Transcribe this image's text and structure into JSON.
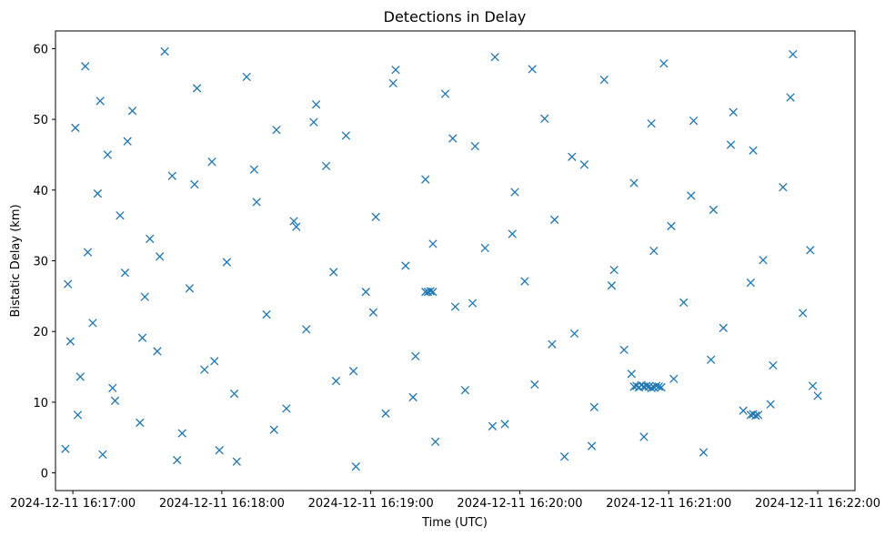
{
  "chart_data": {
    "type": "scatter",
    "title": "Detections in Delay",
    "xlabel": "Time (UTC)",
    "ylabel": "Bistatic Delay (km)",
    "x_ticks": [
      "2024-12-11 16:17:00",
      "2024-12-11 16:18:00",
      "2024-12-11 16:19:00",
      "2024-12-11 16:20:00",
      "2024-12-11 16:21:00",
      "2024-12-11 16:22:00"
    ],
    "y_ticks": [
      0,
      10,
      20,
      30,
      40,
      50,
      60
    ],
    "xlim": [
      "2024-12-11 16:16:53",
      "2024-12-11 16:22:15"
    ],
    "ylim": [
      -2.5,
      62.5
    ],
    "grid": false,
    "marker": "x",
    "color": "#1f77b4",
    "series": [
      {
        "x_time": [
          "16:16:57",
          "16:16:59",
          "16:17:01",
          "16:17:03",
          "16:17:05",
          "16:17:08",
          "16:17:10",
          "16:17:12",
          "16:17:14",
          "16:17:17",
          "16:17:19",
          "16:17:21",
          "16:17:24",
          "16:17:27",
          "16:17:29",
          "16:17:31",
          "16:17:34",
          "16:17:37",
          "16:17:40",
          "16:17:44",
          "16:17:47",
          "16:17:50",
          "16:17:53",
          "16:17:56",
          "16:17:59",
          "16:18:02",
          "16:18:06",
          "16:18:10",
          "16:18:14",
          "16:18:18",
          "16:18:22",
          "16:18:26",
          "16:18:30",
          "16:18:34",
          "16:18:38",
          "16:18:42",
          "16:18:46",
          "16:18:50",
          "16:18:54",
          "16:18:58",
          "16:19:02",
          "16:19:06",
          "16:19:10",
          "16:19:14",
          "16:19:18",
          "16:19:22",
          "16:19:26",
          "16:19:30",
          "16:19:34",
          "16:19:38",
          "16:19:42",
          "16:19:46",
          "16:19:50",
          "16:19:54",
          "16:19:58",
          "16:20:02",
          "16:20:06",
          "16:20:10",
          "16:20:14",
          "16:20:18",
          "16:20:22",
          "16:20:26",
          "16:20:30",
          "16:20:34",
          "16:20:38",
          "16:20:42",
          "16:20:46",
          "16:20:50",
          "16:20:54",
          "16:20:58",
          "16:21:02",
          "16:21:06",
          "16:21:10",
          "16:21:14",
          "16:21:18",
          "16:21:22",
          "16:21:26",
          "16:21:30",
          "16:21:34",
          "16:21:38",
          "16:21:42",
          "16:21:46",
          "16:21:50",
          "16:21:54",
          "16:21:58",
          "16:22:00",
          "16:16:58",
          "16:17:02",
          "16:17:06",
          "16:17:11",
          "16:17:16",
          "16:17:22",
          "16:17:28",
          "16:17:35",
          "16:17:42",
          "16:17:49",
          "16:17:57",
          "16:18:05",
          "16:18:13",
          "16:18:21",
          "16:18:29",
          "16:18:37",
          "16:18:45",
          "16:18:53",
          "16:19:01",
          "16:19:09",
          "16:19:17",
          "16:19:25",
          "16:19:33",
          "16:19:41",
          "16:19:49",
          "16:19:57",
          "16:20:05",
          "16:20:13",
          "16:20:21",
          "16:20:29",
          "16:20:37",
          "16:20:45",
          "16:20:53",
          "16:21:01",
          "16:21:09",
          "16:21:17",
          "16:21:25",
          "16:21:33",
          "16:21:41",
          "16:21:49",
          "16:21:57",
          "16:19:22",
          "16:19:23",
          "16:19:24",
          "16:19:25",
          "16:20:46",
          "16:20:47",
          "16:20:48",
          "16:20:49",
          "16:20:50",
          "16:20:51",
          "16:20:52",
          "16:20:53",
          "16:20:54",
          "16:20:55",
          "16:20:56",
          "16:20:57",
          "16:21:33",
          "16:21:34",
          "16:21:35",
          "16:21:36"
        ],
        "y": [
          3.4,
          18.6,
          48.8,
          13.6,
          57.5,
          21.2,
          39.5,
          2.6,
          45.0,
          10.2,
          36.4,
          28.3,
          51.2,
          7.1,
          24.9,
          33.1,
          17.2,
          59.6,
          42.0,
          5.6,
          26.1,
          54.4,
          14.6,
          44.0,
          3.2,
          29.8,
          1.6,
          56.0,
          38.3,
          22.4,
          48.5,
          9.1,
          34.8,
          20.3,
          52.1,
          43.4,
          13.0,
          47.7,
          0.9,
          25.6,
          36.2,
          8.4,
          57.0,
          29.3,
          16.5,
          41.5,
          4.4,
          53.6,
          23.5,
          11.7,
          46.2,
          31.8,
          58.8,
          6.9,
          39.7,
          27.1,
          12.5,
          50.1,
          35.8,
          2.3,
          19.7,
          43.6,
          9.3,
          55.6,
          28.7,
          17.4,
          41.0,
          5.1,
          31.4,
          57.9,
          13.3,
          24.1,
          49.8,
          2.9,
          37.2,
          20.5,
          51.0,
          8.8,
          45.6,
          30.1,
          15.2,
          40.4,
          59.2,
          22.6,
          12.3,
          10.9,
          26.7,
          8.2,
          31.2,
          52.6,
          12.0,
          46.9,
          19.1,
          30.6,
          1.8,
          40.8,
          15.8,
          11.2,
          42.9,
          6.1,
          35.6,
          49.6,
          28.4,
          14.4,
          22.7,
          55.1,
          10.7,
          32.4,
          47.3,
          24.0,
          6.6,
          33.8,
          57.1,
          18.2,
          44.7,
          3.8,
          26.5,
          14.0,
          49.4,
          34.9,
          39.2,
          16.0,
          46.4,
          26.9,
          9.7,
          53.1,
          31.5,
          25.6,
          25.6,
          25.7,
          25.6,
          12.2,
          12.3,
          12.1,
          12.4,
          12.2,
          12.3,
          12.2,
          12.0,
          12.1,
          12.3,
          12.2,
          12.1,
          8.2,
          8.3,
          8.1,
          8.2
        ]
      }
    ]
  }
}
